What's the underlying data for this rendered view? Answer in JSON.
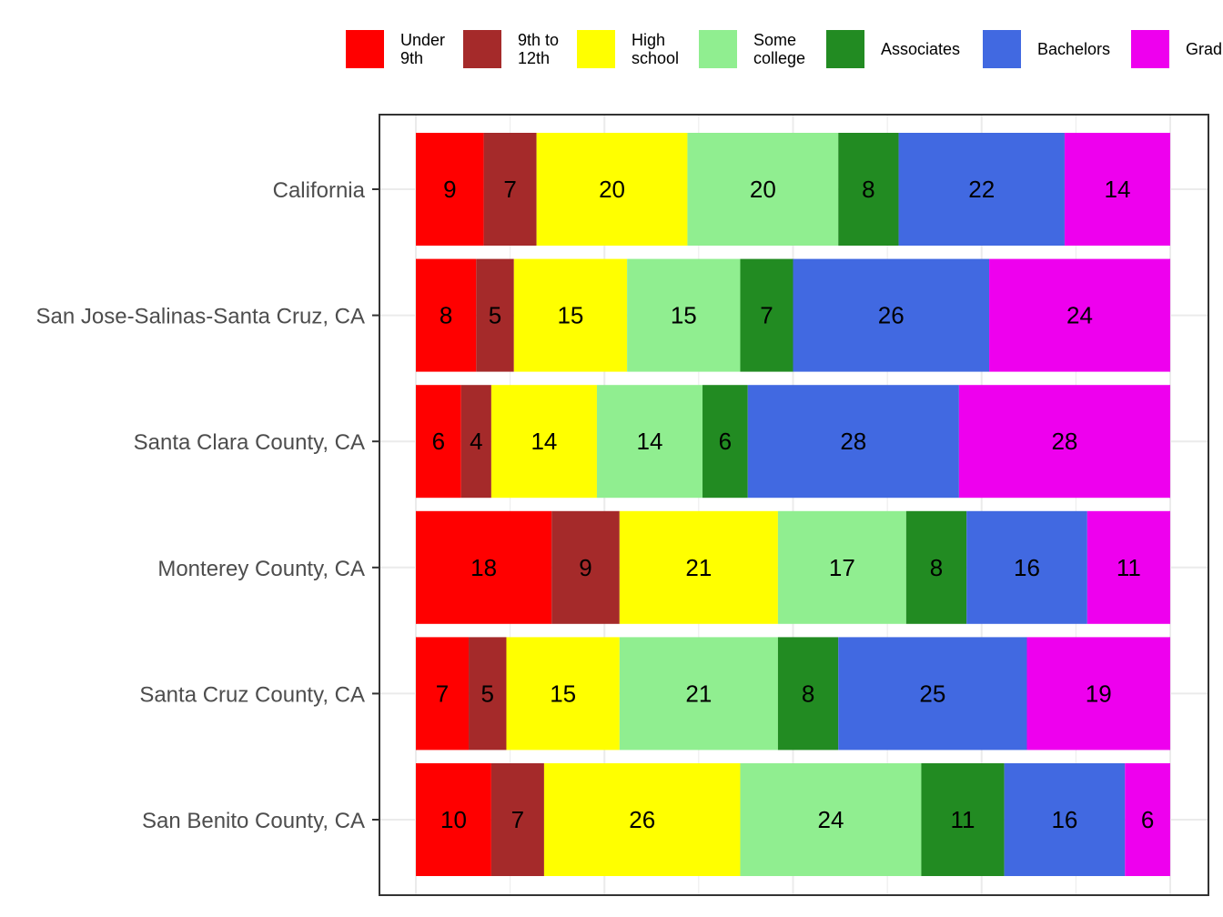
{
  "chart_data": {
    "type": "bar",
    "orientation": "horizontal",
    "stacked": "percent",
    "title": "",
    "xlabel": "",
    "ylabel": "",
    "grid": true,
    "legend_position": "top",
    "categories": [
      "California",
      "San Jose-Salinas-Santa Cruz, CA",
      "Santa Clara County, CA",
      "Monterey County, CA",
      "Santa Cruz County, CA",
      "San Benito County, CA"
    ],
    "series": [
      {
        "name": "Under\n9th",
        "color": "#FF0000",
        "values": [
          9,
          8,
          6,
          18,
          7,
          10
        ]
      },
      {
        "name": "9th to\n12th",
        "color": "#A52A2A",
        "values": [
          7,
          5,
          4,
          9,
          5,
          7
        ]
      },
      {
        "name": "High\nschool",
        "color": "#FFFF00",
        "values": [
          20,
          15,
          14,
          21,
          15,
          26
        ]
      },
      {
        "name": "Some\ncollege",
        "color": "#90EE90",
        "values": [
          20,
          15,
          14,
          17,
          21,
          24
        ]
      },
      {
        "name": "Associates",
        "color": "#228B22",
        "values": [
          8,
          7,
          6,
          8,
          8,
          11
        ]
      },
      {
        "name": "Bachelors",
        "color": "#4169E1",
        "values": [
          22,
          26,
          28,
          16,
          25,
          16
        ]
      },
      {
        "name": "Grad",
        "color": "#EE00EE",
        "values": [
          14,
          24,
          28,
          11,
          19,
          6
        ]
      }
    ]
  }
}
